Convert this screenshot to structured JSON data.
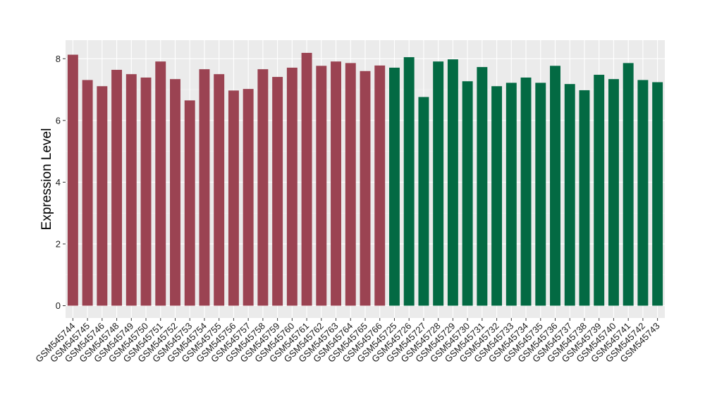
{
  "chart_data": {
    "type": "bar",
    "ylabel": "Expression Level",
    "xlabel": "",
    "title": "",
    "ylim": [
      -0.4,
      8.6
    ],
    "yticks": [
      0,
      2,
      4,
      6,
      8
    ],
    "grid": true,
    "background": "#EBEBEB",
    "categories": [
      "GSM545744",
      "GSM545745",
      "GSM545746",
      "GSM545748",
      "GSM545749",
      "GSM545750",
      "GSM545751",
      "GSM545752",
      "GSM545753",
      "GSM545754",
      "GSM545755",
      "GSM545756",
      "GSM545757",
      "GSM545758",
      "GSM545759",
      "GSM545760",
      "GSM545761",
      "GSM545762",
      "GSM545763",
      "GSM545764",
      "GSM545765",
      "GSM545766",
      "GSM545725",
      "GSM545726",
      "GSM545727",
      "GSM545728",
      "GSM545729",
      "GSM545730",
      "GSM545731",
      "GSM545732",
      "GSM545733",
      "GSM545734",
      "GSM545735",
      "GSM545736",
      "GSM545737",
      "GSM545738",
      "GSM545739",
      "GSM545740",
      "GSM545741",
      "GSM545742",
      "GSM545743"
    ],
    "values": [
      8.13,
      7.31,
      7.11,
      7.64,
      7.5,
      7.39,
      7.91,
      7.34,
      6.65,
      7.66,
      7.5,
      6.97,
      7.02,
      7.66,
      7.41,
      7.71,
      8.19,
      7.77,
      7.91,
      7.86,
      7.6,
      7.78,
      7.71,
      8.05,
      6.76,
      7.91,
      7.98,
      7.27,
      7.73,
      7.11,
      7.22,
      7.39,
      7.22,
      7.77,
      7.18,
      6.98,
      7.48,
      7.34,
      7.86,
      7.31,
      7.24
    ],
    "groups": [
      {
        "color": "#9B4352",
        "count": 22
      },
      {
        "color": "#036A43",
        "count": 19
      }
    ]
  }
}
